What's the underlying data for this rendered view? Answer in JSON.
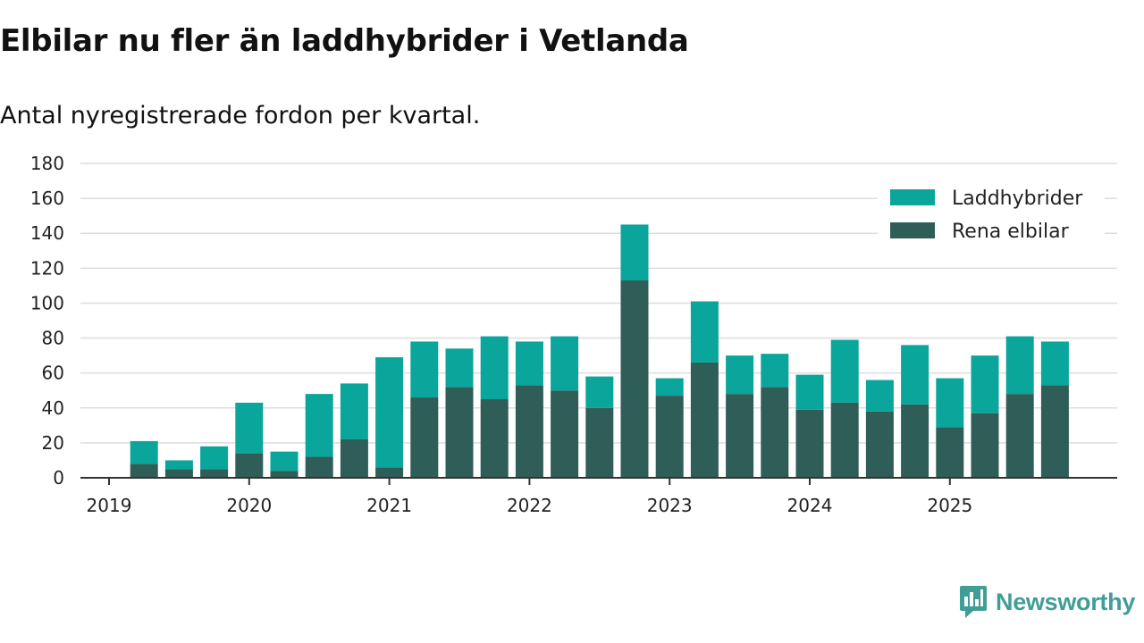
{
  "title": "Elbilar nu fler än laddhybrider i Vetlanda",
  "subtitle": "Antal nyregistrerade fordon per kvartal.",
  "brand": {
    "name": "Newsworthy",
    "color": "#3f9e95"
  },
  "chart_data": {
    "type": "bar",
    "stacked": true,
    "categories": [
      "2019 Q1",
      "2019 Q2",
      "2019 Q3",
      "2019 Q4",
      "2020 Q1",
      "2020 Q2",
      "2020 Q3",
      "2020 Q4",
      "2021 Q1",
      "2021 Q2",
      "2021 Q3",
      "2021 Q4",
      "2022 Q1",
      "2022 Q2",
      "2022 Q3",
      "2022 Q4",
      "2023 Q1",
      "2023 Q2",
      "2023 Q3",
      "2023 Q4",
      "2024 Q1",
      "2024 Q2",
      "2024 Q3",
      "2024 Q4",
      "2025 Q1",
      "2025 Q2",
      "2025 Q3",
      "2025 Q4"
    ],
    "series": [
      {
        "name": "Rena elbilar",
        "color": "#2f5d58",
        "values": [
          0,
          8,
          5,
          5,
          14,
          4,
          12,
          22,
          6,
          46,
          52,
          45,
          53,
          50,
          40,
          113,
          47,
          66,
          48,
          52,
          39,
          43,
          38,
          42,
          29,
          37,
          48,
          53
        ]
      },
      {
        "name": "Laddhybrider",
        "color": "#0aa59b",
        "values": [
          0,
          13,
          5,
          13,
          29,
          11,
          36,
          32,
          63,
          32,
          22,
          36,
          25,
          31,
          18,
          32,
          10,
          35,
          22,
          19,
          20,
          36,
          18,
          34,
          28,
          33,
          33,
          25
        ]
      }
    ],
    "x_tick_labels": [
      "2019",
      "2020",
      "2021",
      "2022",
      "2023",
      "2024",
      "2025"
    ],
    "y_tick_labels": [
      "0",
      "20",
      "40",
      "60",
      "80",
      "100",
      "120",
      "140",
      "160",
      "180"
    ],
    "ylim": [
      0,
      180
    ],
    "legend": {
      "position": "top-right",
      "entries": [
        "Laddhybrider",
        "Rena elbilar"
      ]
    },
    "grid": true,
    "xlabel": "",
    "ylabel": "",
    "title": "Elbilar nu fler än laddhybrider i Vetlanda",
    "subtitle": "Antal nyregistrerade fordon per kvartal."
  }
}
